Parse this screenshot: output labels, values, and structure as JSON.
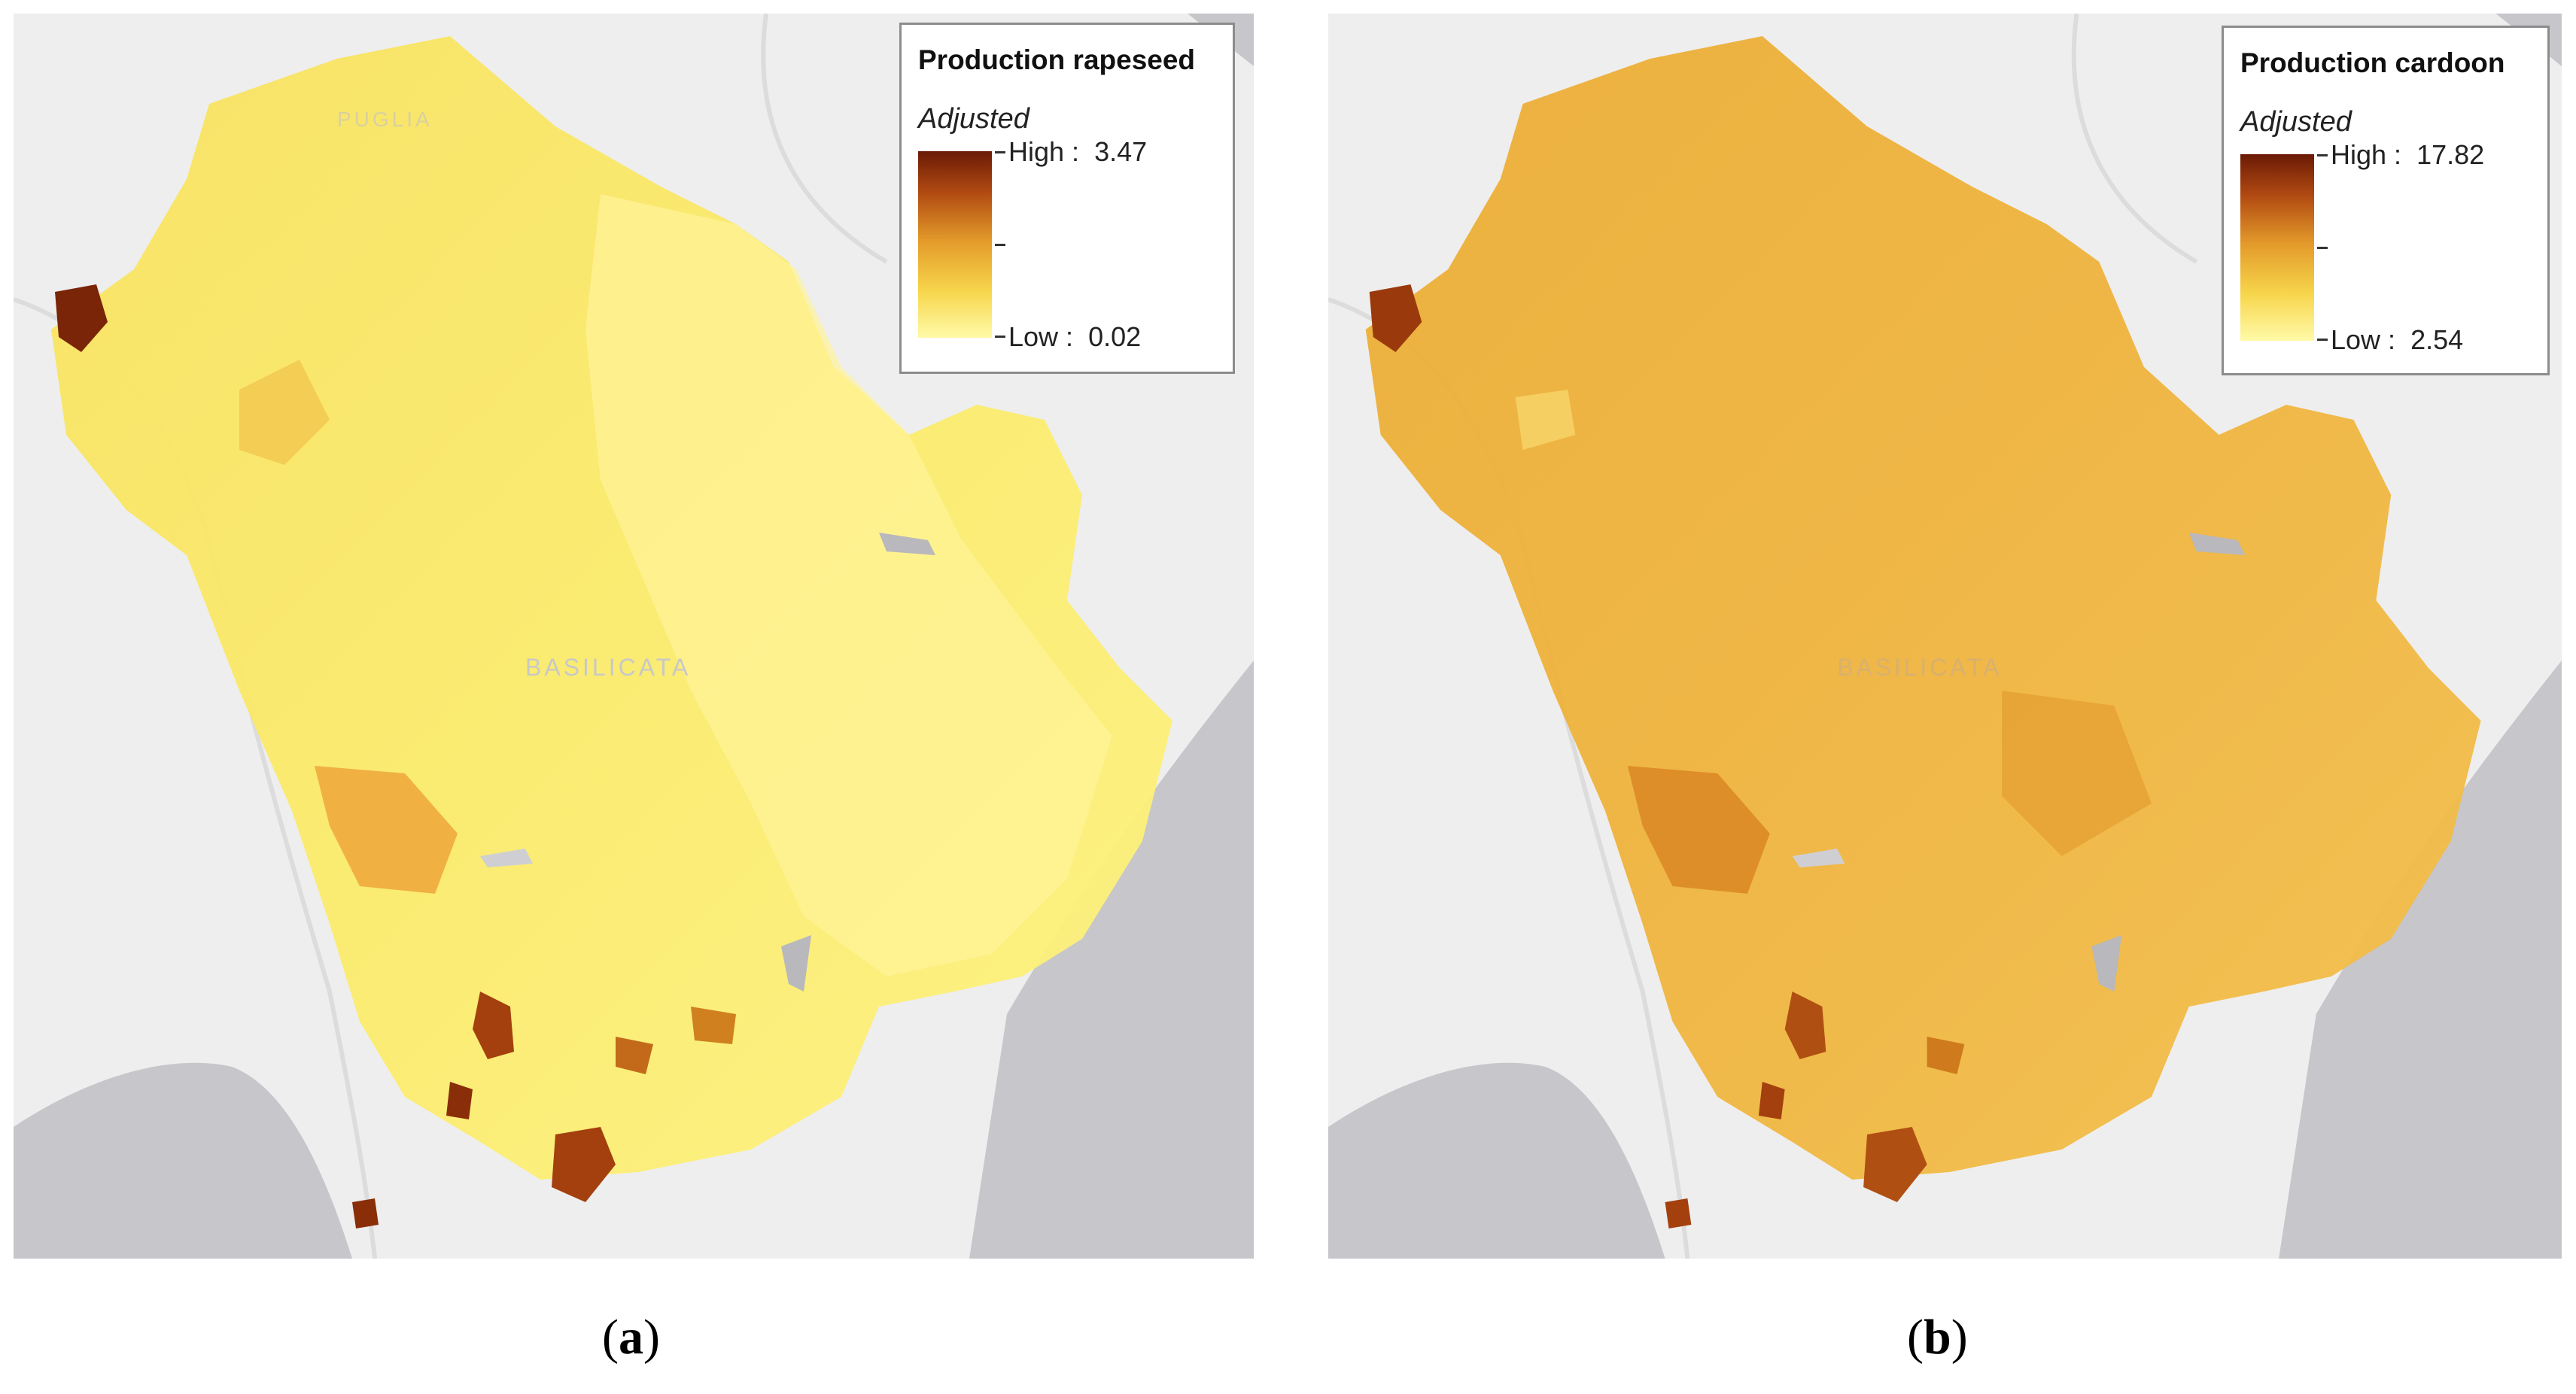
{
  "panels": [
    {
      "legend": {
        "title": "Production rapeseed",
        "subtitle": "Adjusted",
        "high_label": "High :",
        "high_value": "3.47",
        "low_label": "Low :",
        "low_value": "0.02"
      },
      "region_label": "BASILICATA",
      "top_label": "PUGLIA",
      "caption": {
        "open": "(",
        "letter": "a",
        "close": ")"
      }
    },
    {
      "legend": {
        "title": "Production cardoon",
        "subtitle": "Adjusted",
        "high_label": "High :",
        "high_value": "17.82",
        "low_label": "Low :",
        "low_value": "2.54"
      },
      "region_label": "BASILICATA",
      "caption": {
        "open": "(",
        "letter": "b",
        "close": ")"
      }
    }
  ],
  "colors": {
    "land": "#eeeeee",
    "water": "#c6c6cb",
    "ramp_high": "#6b1a06",
    "ramp_mid": "#e39a2a",
    "ramp_low": "#fffaa8",
    "rapeseed_base": "#fbec6a",
    "cardoon_base": "#efb23c"
  }
}
